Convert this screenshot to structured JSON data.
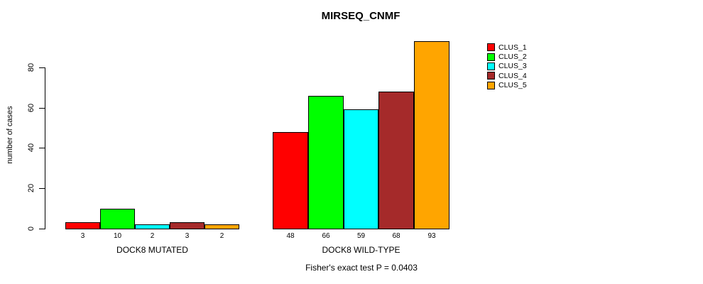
{
  "title": "MIRSEQ_CNMF",
  "chart_data": {
    "type": "bar",
    "title": "MIRSEQ_CNMF",
    "categories": [
      "DOCK8 MUTATED",
      "DOCK8 WILD-TYPE"
    ],
    "series": [
      {
        "name": "CLUS_1",
        "color": "#FF0000",
        "values": [
          3,
          48
        ]
      },
      {
        "name": "CLUS_2",
        "color": "#00FF00",
        "values": [
          10,
          66
        ]
      },
      {
        "name": "CLUS_3",
        "color": "#00FFFF",
        "values": [
          2,
          59
        ]
      },
      {
        "name": "CLUS_4",
        "color": "#A52A2A",
        "values": [
          3,
          68
        ]
      },
      {
        "name": "CLUS_5",
        "color": "#FFA500",
        "values": [
          2,
          93
        ]
      }
    ],
    "xlabel": "",
    "ylabel": "number of cases",
    "ylim": [
      0,
      95
    ],
    "yticks": [
      0,
      20,
      40,
      60,
      80
    ],
    "bar_value_labels": true,
    "grid": false,
    "legend_position": "right",
    "annotation": "Fisher's exact test P = 0.0403"
  }
}
